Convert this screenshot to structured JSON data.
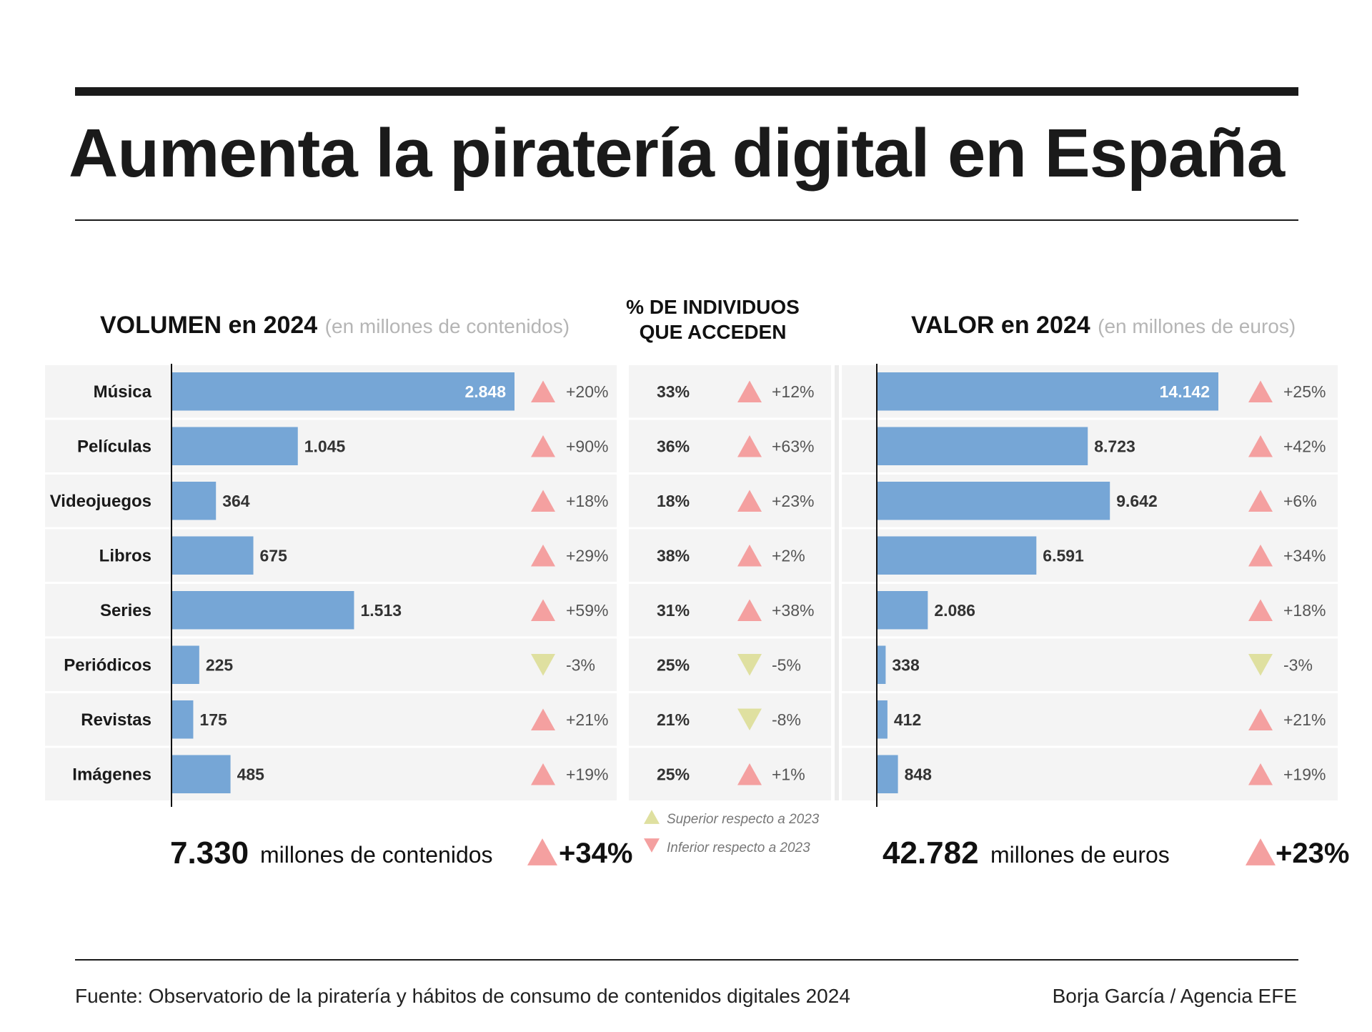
{
  "title": "Aumenta la piratería digital en España",
  "volume_panel": {
    "title": "VOLUMEN en 2024",
    "subtitle": "(en millones de contenidos)"
  },
  "pct_panel": {
    "title_line1": "% DE INDIVIDUOS",
    "title_line2": "QUE ACCEDEN"
  },
  "value_panel": {
    "title": "VALOR en 2024",
    "subtitle": "(en millones de euros)"
  },
  "legend": {
    "up": "Superior respecto a 2023",
    "down": "Inferior respecto a 2023"
  },
  "totals": {
    "volume_value": "7.330",
    "volume_text": "millones de contenidos",
    "volume_change": "+34%",
    "value_value": "42.782",
    "value_text": "millones de euros",
    "value_change": "+23%"
  },
  "footer": {
    "source": "Fuente: Observatorio de la piratería y hábitos de consumo de contenidos digitales 2024",
    "credit": "Borja García / Agencia EFE"
  },
  "colors": {
    "bar": "#76a6d6",
    "up": "#f4a0a0",
    "down": "#dfe0a0",
    "band": "#f4f4f4"
  },
  "chart_data": [
    {
      "type": "bar",
      "title": "VOLUMEN en 2024",
      "subtitle": "(en millones de contenidos)",
      "categories": [
        "Música",
        "Películas",
        "Videojuegos",
        "Libros",
        "Series",
        "Periódicos",
        "Revistas",
        "Imágenes"
      ],
      "values": [
        2848,
        1045,
        364,
        675,
        1513,
        225,
        175,
        485
      ],
      "value_labels": [
        "2.848",
        "1.045",
        "364",
        "675",
        "1.513",
        "225",
        "175",
        "485"
      ],
      "changes": [
        "+20%",
        "+90%",
        "+18%",
        "+29%",
        "+59%",
        "-3%",
        "+21%",
        "+19%"
      ],
      "directions": [
        "up",
        "up",
        "up",
        "up",
        "up",
        "down",
        "up",
        "up"
      ],
      "xlim": [
        0,
        2848
      ]
    },
    {
      "type": "table",
      "title": "% DE INDIVIDUOS QUE ACCEDEN",
      "categories": [
        "Música",
        "Películas",
        "Videojuegos",
        "Libros",
        "Series",
        "Periódicos",
        "Revistas",
        "Imágenes"
      ],
      "values": [
        "33%",
        "36%",
        "18%",
        "38%",
        "31%",
        "25%",
        "21%",
        "25%"
      ],
      "changes": [
        "+12%",
        "+63%",
        "+23%",
        "+2%",
        "+38%",
        "-5%",
        "-8%",
        "+1%"
      ],
      "directions": [
        "up",
        "up",
        "up",
        "up",
        "up",
        "down",
        "down",
        "up"
      ]
    },
    {
      "type": "bar",
      "title": "VALOR en 2024",
      "subtitle": "(en millones de euros)",
      "categories": [
        "Música",
        "Películas",
        "Videojuegos",
        "Libros",
        "Series",
        "Periódicos",
        "Revistas",
        "Imágenes"
      ],
      "values": [
        14142,
        8723,
        9642,
        6591,
        2086,
        338,
        412,
        848
      ],
      "value_labels": [
        "14.142",
        "8.723",
        "9.642",
        "6.591",
        "2.086",
        "338",
        "412",
        "848"
      ],
      "changes": [
        "+25%",
        "+42%",
        "+6%",
        "+34%",
        "+18%",
        "-3%",
        "+21%",
        "+19%"
      ],
      "directions": [
        "up",
        "up",
        "up",
        "up",
        "up",
        "down",
        "up",
        "up"
      ],
      "xlim": [
        0,
        14142
      ]
    }
  ]
}
